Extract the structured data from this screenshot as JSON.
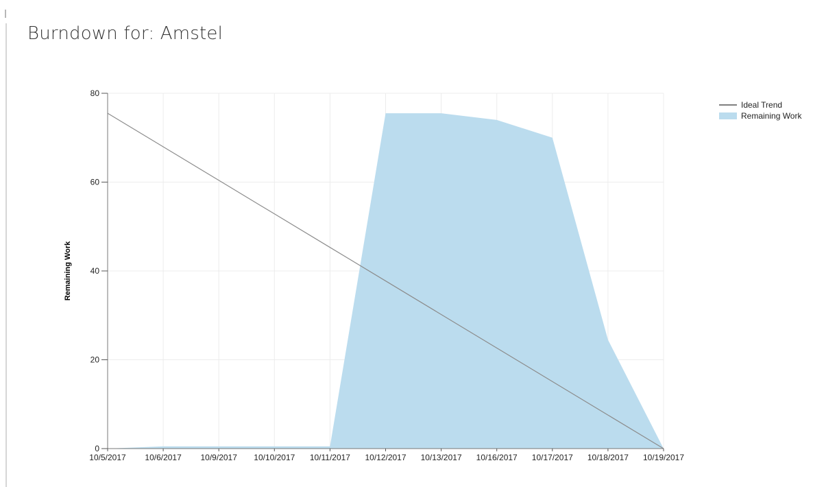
{
  "page": {
    "title": "Burndown for: Amstel"
  },
  "chart_data": {
    "type": "area",
    "categories": [
      "10/5/2017",
      "10/6/2017",
      "10/9/2017",
      "10/10/2017",
      "10/11/2017",
      "10/12/2017",
      "10/13/2017",
      "10/16/2017",
      "10/17/2017",
      "10/18/2017",
      "10/19/2017"
    ],
    "series": [
      {
        "name": "Remaining Work",
        "type": "area",
        "color": "#bbdcee",
        "values": [
          0,
          0.5,
          0.5,
          0.5,
          0.5,
          75.5,
          75.5,
          74,
          70,
          24.5,
          0
        ]
      },
      {
        "name": "Ideal Trend",
        "type": "line",
        "color": "#8c8c8c",
        "values": [
          75.5,
          67.95,
          60.4,
          52.85,
          45.3,
          37.75,
          30.2,
          22.65,
          15.1,
          7.55,
          0
        ]
      }
    ],
    "ylabel": "Remaining Work",
    "xlabel": "",
    "ylim": [
      0,
      80
    ],
    "yticks": [
      0,
      20,
      40,
      60,
      80
    ],
    "grid": true,
    "legend_position": "top-right",
    "legend_order": [
      "Ideal Trend",
      "Remaining Work"
    ]
  }
}
